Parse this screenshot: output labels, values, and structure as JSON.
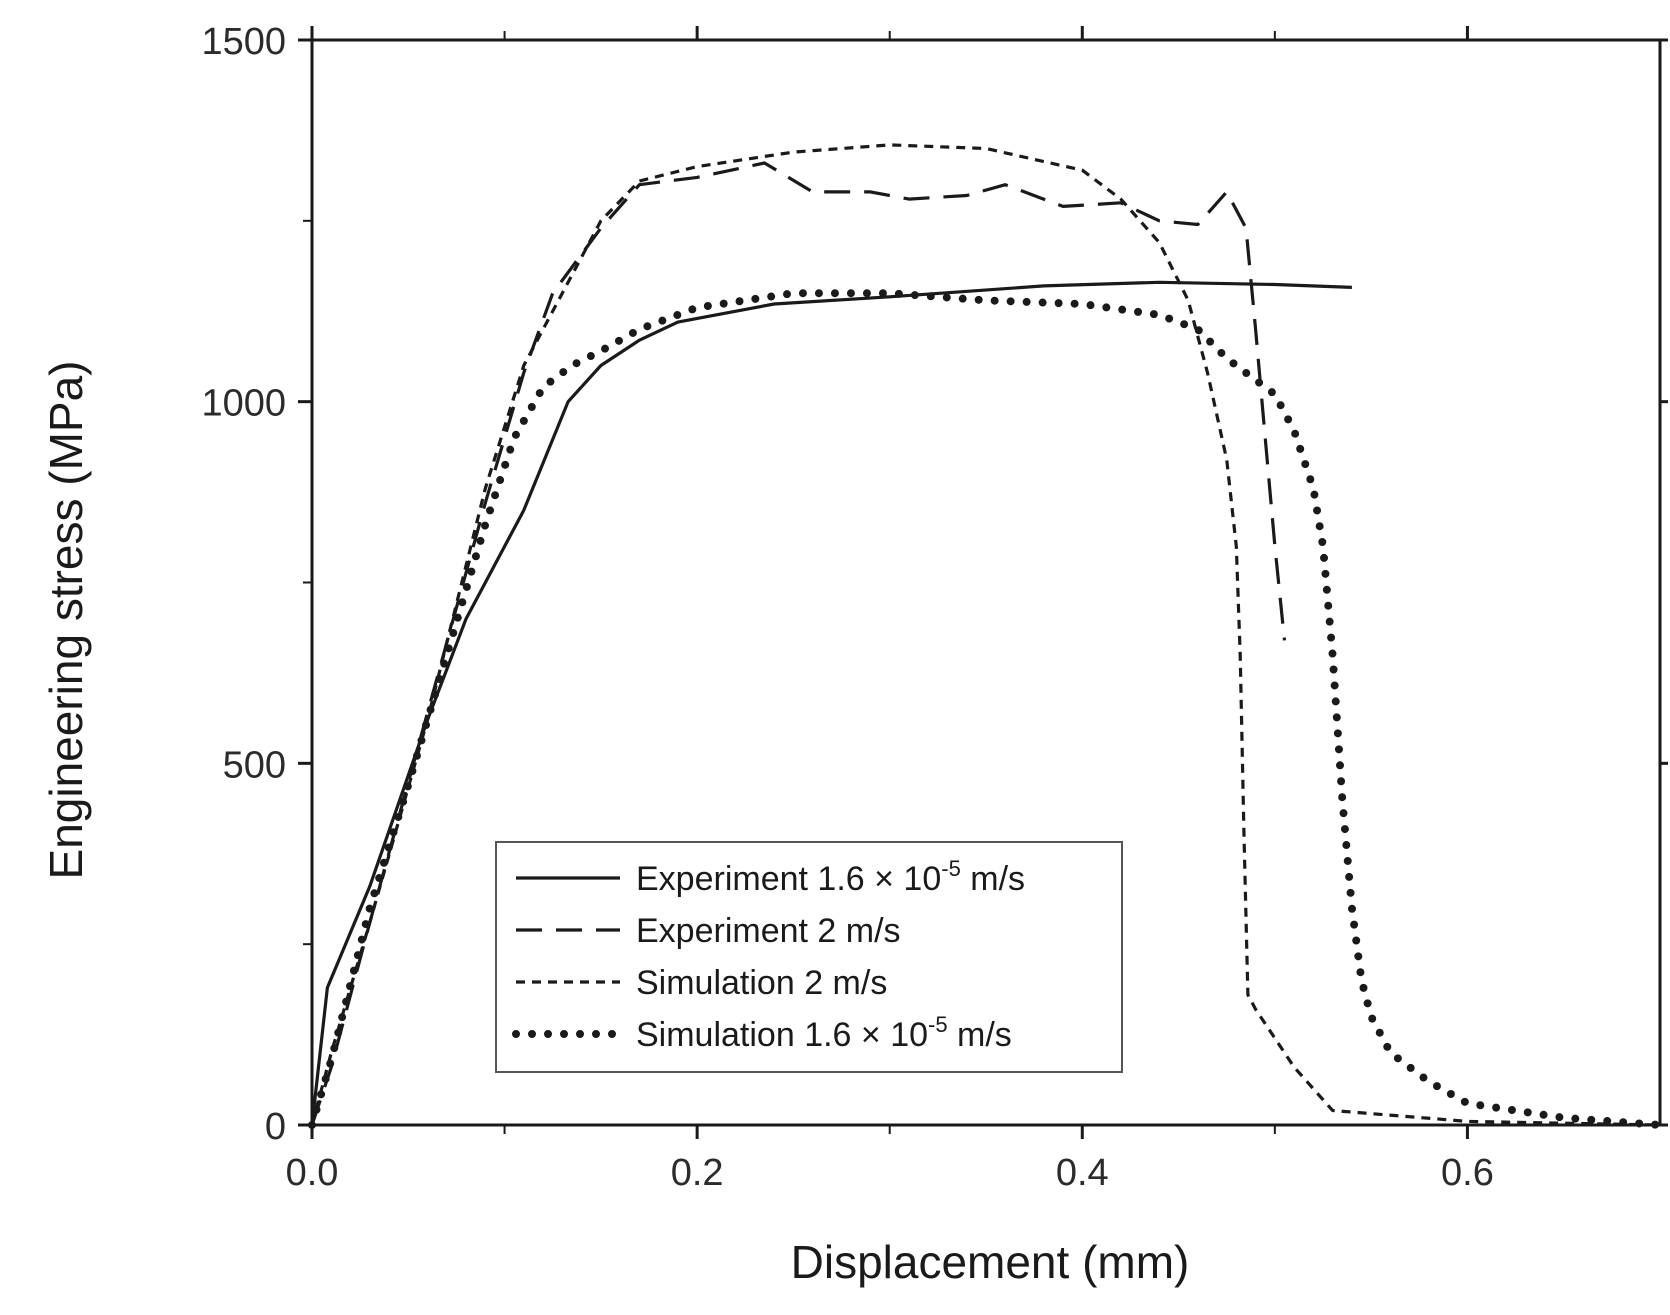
{
  "chart_data": {
    "type": "line",
    "title": "",
    "xlabel": "Displacement (mm)",
    "ylabel": "Engineering stress (MPa)",
    "xlim": [
      0,
      0.7
    ],
    "ylim": [
      0,
      1500
    ],
    "xticks": [
      0.0,
      0.2,
      0.4,
      0.6
    ],
    "xtick_labels": [
      "0.0",
      "0.2",
      "0.4",
      "0.6"
    ],
    "yticks": [
      0,
      500,
      1000,
      1500
    ],
    "ytick_labels": [
      "0",
      "500",
      "1000",
      "1500"
    ],
    "x_minor_ticks": [
      0.1,
      0.3,
      0.5
    ],
    "y_minor_ticks": [
      250,
      750,
      1250
    ],
    "grid": false,
    "legend_position": "bottom-center",
    "series": [
      {
        "name": "Experiment 1.6 × 10-5 m/s",
        "legend": {
          "prefix": "Experiment 1.6 × 10",
          "sup": "-5",
          "suffix": " m/s"
        },
        "style": "solid",
        "x": [
          0,
          0.008,
          0.03,
          0.06,
          0.08,
          0.11,
          0.133,
          0.15,
          0.17,
          0.19,
          0.24,
          0.3,
          0.38,
          0.44,
          0.5,
          0.54
        ],
        "y": [
          0,
          190,
          330,
          560,
          700,
          850,
          1000,
          1050,
          1085,
          1110,
          1135,
          1145,
          1160,
          1165,
          1162,
          1158
        ]
      },
      {
        "name": "Experiment 2 m/s",
        "legend": {
          "prefix": "Experiment  2 m/s",
          "sup": "",
          "suffix": ""
        },
        "style": "dashed",
        "x": [
          0,
          0.01,
          0.03,
          0.06,
          0.09,
          0.11,
          0.125,
          0.15,
          0.17,
          0.2,
          0.235,
          0.26,
          0.29,
          0.31,
          0.34,
          0.36,
          0.39,
          0.42,
          0.44,
          0.46,
          0.475,
          0.485,
          0.49,
          0.495,
          0.5,
          0.505
        ],
        "y": [
          0,
          80,
          280,
          570,
          860,
          1040,
          1150,
          1240,
          1300,
          1310,
          1330,
          1290,
          1290,
          1280,
          1285,
          1300,
          1270,
          1275,
          1250,
          1245,
          1290,
          1240,
          1100,
          950,
          800,
          670
        ]
      },
      {
        "name": "Simulation 2 m/s",
        "legend": {
          "prefix": "Simulation  2 m/s",
          "sup": "",
          "suffix": ""
        },
        "style": "short-dashed",
        "x": [
          0,
          0.01,
          0.03,
          0.06,
          0.09,
          0.11,
          0.13,
          0.15,
          0.17,
          0.2,
          0.25,
          0.3,
          0.35,
          0.4,
          0.42,
          0.44,
          0.455,
          0.465,
          0.475,
          0.48,
          0.482,
          0.484,
          0.486,
          0.49,
          0.51,
          0.53,
          0.6,
          0.7
        ],
        "y": [
          0,
          100,
          280,
          560,
          880,
          1050,
          1150,
          1250,
          1305,
          1325,
          1345,
          1355,
          1350,
          1320,
          1280,
          1220,
          1140,
          1040,
          920,
          800,
          650,
          400,
          180,
          160,
          80,
          20,
          5,
          0
        ]
      },
      {
        "name": "Simulation 1.6 × 10-5 m/s",
        "legend": {
          "prefix": "Simulation   1.6 × 10",
          "sup": "-5",
          "suffix": " m/s"
        },
        "style": "dotted",
        "x": [
          0,
          0.01,
          0.03,
          0.05,
          0.07,
          0.09,
          0.105,
          0.12,
          0.135,
          0.15,
          0.17,
          0.2,
          0.25,
          0.3,
          0.35,
          0.4,
          0.44,
          0.46,
          0.475,
          0.49,
          0.5,
          0.51,
          0.52,
          0.525,
          0.53,
          0.535,
          0.54,
          0.545,
          0.55,
          0.56,
          0.58,
          0.6,
          0.65,
          0.7
        ],
        "y": [
          0,
          90,
          300,
          470,
          650,
          830,
          950,
          1020,
          1050,
          1070,
          1100,
          1130,
          1150,
          1150,
          1140,
          1135,
          1120,
          1100,
          1060,
          1030,
          1010,
          960,
          880,
          800,
          650,
          450,
          300,
          200,
          150,
          100,
          60,
          30,
          10,
          0
        ]
      }
    ]
  }
}
